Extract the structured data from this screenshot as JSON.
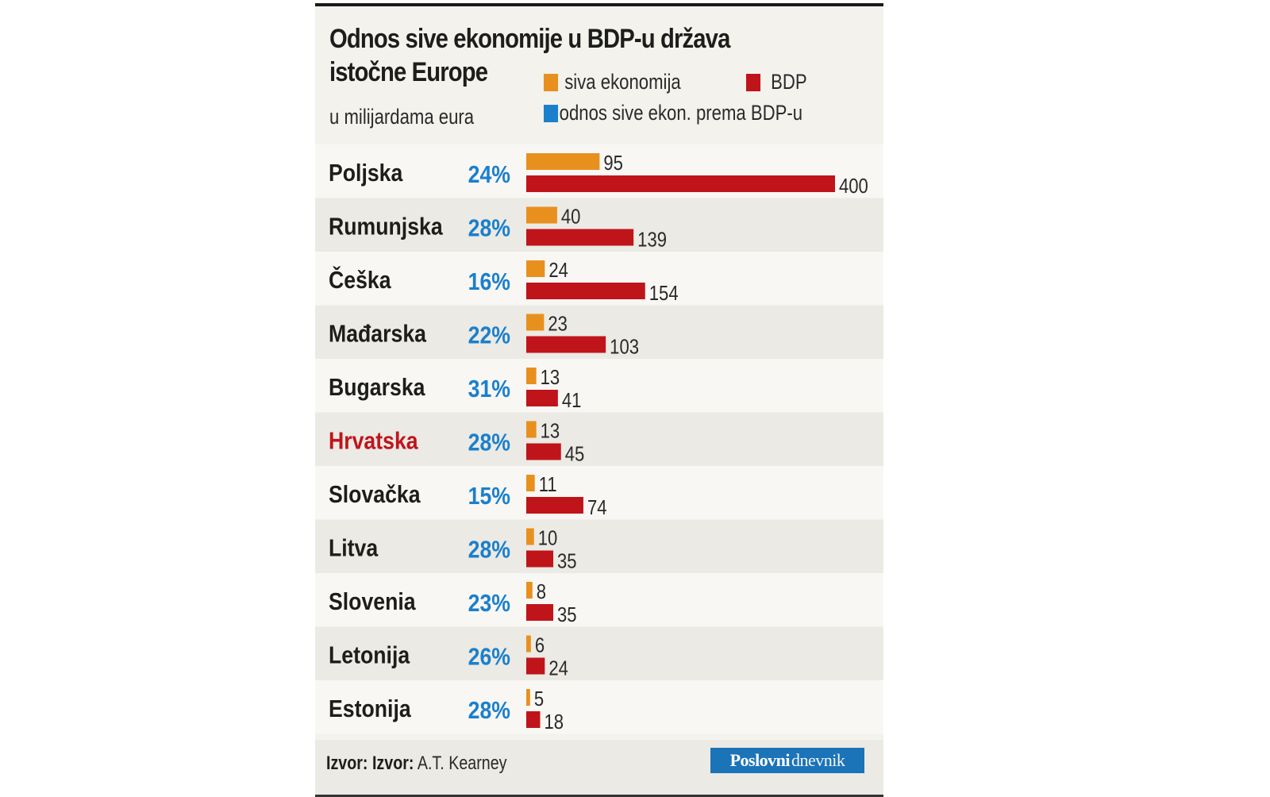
{
  "title": "Odnos sive ekonomije u BDP-u država istočne Europe",
  "title_line1": "Odnos sive ekonomije u BDP-u država",
  "title_line2": "istočne Europe",
  "subtitle": "u milijardama eura",
  "legend": [
    {
      "label": "siva ekonomija",
      "color": "#e8901e"
    },
    {
      "label": "BDP",
      "color": "#c0141b"
    },
    {
      "label": "odnos sive ekon. prema BDP-u",
      "color": "#1b7fcc"
    }
  ],
  "footer": {
    "source_prefix": "Izvor: Izvor:",
    "source": "A.T. Kearney",
    "logo_part1": "Poslovni",
    "logo_part2": "dnevnik"
  },
  "colors": {
    "shadow_economy": "#e8901e",
    "gdp": "#c0141b",
    "ratio_text": "#1b7fcc",
    "highlight_country": "#c0141b",
    "row_alt": "#ebeae4",
    "row_base": "#f8f7f4"
  },
  "chart_data": {
    "type": "bar",
    "orientation": "horizontal",
    "title": "Odnos sive ekonomije u BDP-u država istočne Europe",
    "subtitle": "u milijardama eura",
    "xlabel": "",
    "ylabel": "",
    "categories": [
      "Poljska",
      "Rumunjska",
      "Češka",
      "Mađarska",
      "Bugarska",
      "Hrvatska",
      "Slovačka",
      "Litva",
      "Slovenia",
      "Letonija",
      "Estonija"
    ],
    "highlighted_category": "Hrvatska",
    "series": [
      {
        "name": "siva ekonomija",
        "values": [
          95,
          40,
          24,
          23,
          13,
          13,
          11,
          10,
          8,
          6,
          5
        ]
      },
      {
        "name": "BDP",
        "values": [
          400,
          139,
          154,
          103,
          41,
          45,
          74,
          35,
          35,
          24,
          18
        ]
      }
    ],
    "ratio": {
      "name": "odnos sive ekon. prema BDP-u",
      "labels": [
        "24%",
        "28%",
        "16%",
        "22%",
        "31%",
        "28%",
        "15%",
        "28%",
        "23%",
        "26%",
        "28%"
      ]
    },
    "xlim": [
      0,
      400
    ],
    "grid": false,
    "legend_position": "top-right"
  }
}
